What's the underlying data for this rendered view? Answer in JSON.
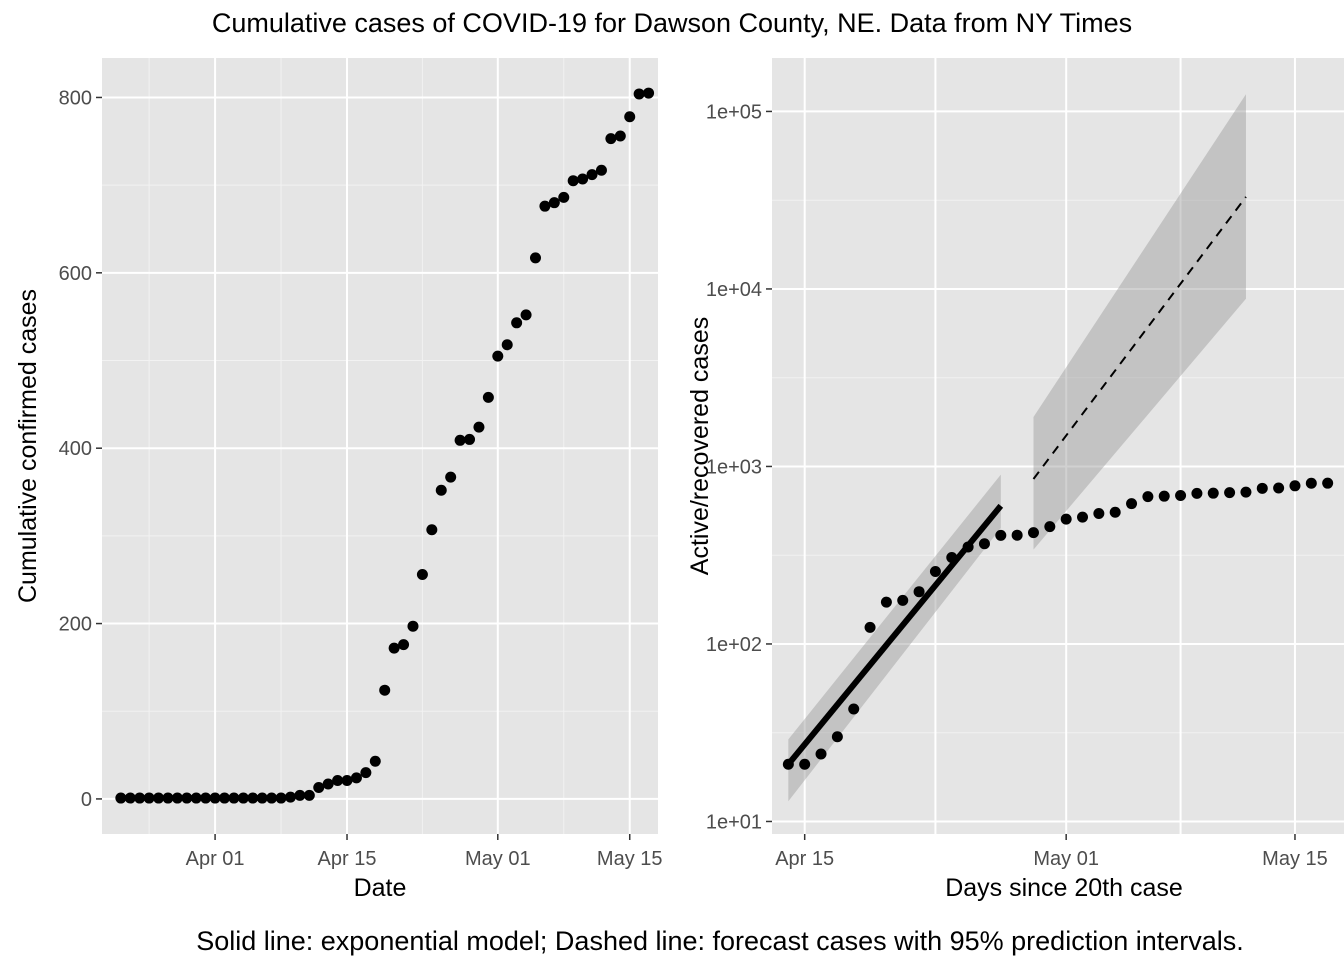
{
  "title": "Cumulative cases of COVID-19 for Dawson County, NE. Data from NY Times",
  "caption": "Solid line: exponential model; Dashed line: forecast cases with 95% prediction intervals.",
  "chart_data": [
    {
      "type": "scatter",
      "name": "left",
      "xlabel": "Date",
      "ylabel": "Cumulative confirmed cases",
      "x_ticks": [
        {
          "label": "Apr 01",
          "day": 1
        },
        {
          "label": "Apr 15",
          "day": 15
        },
        {
          "label": "May 01",
          "day": 31
        },
        {
          "label": "May 15",
          "day": 45
        }
      ],
      "y_ticks": [
        0,
        200,
        400,
        600,
        800
      ],
      "xlim_dates": [
        "2020-03-20",
        "2020-05-18"
      ],
      "ylim": [
        -40,
        845
      ],
      "grid": true,
      "points": [
        {
          "date": "2020-03-22",
          "y": 1
        },
        {
          "date": "2020-03-23",
          "y": 1
        },
        {
          "date": "2020-03-24",
          "y": 1
        },
        {
          "date": "2020-03-25",
          "y": 1
        },
        {
          "date": "2020-03-26",
          "y": 1
        },
        {
          "date": "2020-03-27",
          "y": 1
        },
        {
          "date": "2020-03-28",
          "y": 1
        },
        {
          "date": "2020-03-29",
          "y": 1
        },
        {
          "date": "2020-03-30",
          "y": 1
        },
        {
          "date": "2020-03-31",
          "y": 1
        },
        {
          "date": "2020-04-01",
          "y": 1
        },
        {
          "date": "2020-04-02",
          "y": 1
        },
        {
          "date": "2020-04-03",
          "y": 1
        },
        {
          "date": "2020-04-04",
          "y": 1
        },
        {
          "date": "2020-04-05",
          "y": 1
        },
        {
          "date": "2020-04-06",
          "y": 1
        },
        {
          "date": "2020-04-07",
          "y": 1
        },
        {
          "date": "2020-04-08",
          "y": 1
        },
        {
          "date": "2020-04-09",
          "y": 2
        },
        {
          "date": "2020-04-10",
          "y": 4
        },
        {
          "date": "2020-04-11",
          "y": 4
        },
        {
          "date": "2020-04-12",
          "y": 13
        },
        {
          "date": "2020-04-13",
          "y": 17
        },
        {
          "date": "2020-04-14",
          "y": 21
        },
        {
          "date": "2020-04-15",
          "y": 21
        },
        {
          "date": "2020-04-16",
          "y": 24
        },
        {
          "date": "2020-04-17",
          "y": 30
        },
        {
          "date": "2020-04-18",
          "y": 43
        },
        {
          "date": "2020-04-19",
          "y": 124
        },
        {
          "date": "2020-04-20",
          "y": 172
        },
        {
          "date": "2020-04-21",
          "y": 176
        },
        {
          "date": "2020-04-22",
          "y": 197
        },
        {
          "date": "2020-04-23",
          "y": 256
        },
        {
          "date": "2020-04-24",
          "y": 307
        },
        {
          "date": "2020-04-25",
          "y": 352
        },
        {
          "date": "2020-04-26",
          "y": 367
        },
        {
          "date": "2020-04-27",
          "y": 409
        },
        {
          "date": "2020-04-28",
          "y": 410
        },
        {
          "date": "2020-04-29",
          "y": 424
        },
        {
          "date": "2020-04-30",
          "y": 458
        },
        {
          "date": "2020-05-01",
          "y": 505
        },
        {
          "date": "2020-05-02",
          "y": 518
        },
        {
          "date": "2020-05-03",
          "y": 543
        },
        {
          "date": "2020-05-04",
          "y": 552
        },
        {
          "date": "2020-05-05",
          "y": 617
        },
        {
          "date": "2020-05-06",
          "y": 676
        },
        {
          "date": "2020-05-07",
          "y": 680
        },
        {
          "date": "2020-05-08",
          "y": 686
        },
        {
          "date": "2020-05-09",
          "y": 705
        },
        {
          "date": "2020-05-10",
          "y": 707
        },
        {
          "date": "2020-05-11",
          "y": 712
        },
        {
          "date": "2020-05-12",
          "y": 717
        },
        {
          "date": "2020-05-13",
          "y": 753
        },
        {
          "date": "2020-05-14",
          "y": 756
        },
        {
          "date": "2020-05-15",
          "y": 778
        },
        {
          "date": "2020-05-16",
          "y": 804
        },
        {
          "date": "2020-05-17",
          "y": 805
        }
      ]
    },
    {
      "type": "scatter",
      "name": "right",
      "xlabel": "Days since 20th case",
      "ylabel": "Active/recovered cases",
      "y_scale": "log10",
      "x_ticks": [
        {
          "label": "Apr 15",
          "day": 15
        },
        {
          "label": "May 01",
          "day": 31
        },
        {
          "label": "May 15",
          "day": 45
        }
      ],
      "y_ticks": [
        {
          "label": "1e+01",
          "value": 10
        },
        {
          "label": "1e+02",
          "value": 100
        },
        {
          "label": "1e+03",
          "value": 1000
        },
        {
          "label": "1e+04",
          "value": 10000
        },
        {
          "label": "1e+05",
          "value": 100000
        }
      ],
      "xlim_dates": [
        "2020-04-13",
        "2020-05-18"
      ],
      "ylim": [
        8.5,
        200000
      ],
      "grid": true,
      "points": [
        {
          "date": "2020-04-14",
          "y": 21
        },
        {
          "date": "2020-04-15",
          "y": 21
        },
        {
          "date": "2020-04-16",
          "y": 24
        },
        {
          "date": "2020-04-17",
          "y": 30
        },
        {
          "date": "2020-04-18",
          "y": 43
        },
        {
          "date": "2020-04-19",
          "y": 124
        },
        {
          "date": "2020-04-20",
          "y": 172
        },
        {
          "date": "2020-04-21",
          "y": 176
        },
        {
          "date": "2020-04-22",
          "y": 197
        },
        {
          "date": "2020-04-23",
          "y": 256
        },
        {
          "date": "2020-04-24",
          "y": 307
        },
        {
          "date": "2020-04-25",
          "y": 352
        },
        {
          "date": "2020-04-26",
          "y": 367
        },
        {
          "date": "2020-04-27",
          "y": 409
        },
        {
          "date": "2020-04-28",
          "y": 410
        },
        {
          "date": "2020-04-29",
          "y": 424
        },
        {
          "date": "2020-04-30",
          "y": 458
        },
        {
          "date": "2020-05-01",
          "y": 505
        },
        {
          "date": "2020-05-02",
          "y": 518
        },
        {
          "date": "2020-05-03",
          "y": 543
        },
        {
          "date": "2020-05-04",
          "y": 552
        },
        {
          "date": "2020-05-05",
          "y": 617
        },
        {
          "date": "2020-05-06",
          "y": 676
        },
        {
          "date": "2020-05-07",
          "y": 680
        },
        {
          "date": "2020-05-08",
          "y": 686
        },
        {
          "date": "2020-05-09",
          "y": 705
        },
        {
          "date": "2020-05-10",
          "y": 707
        },
        {
          "date": "2020-05-11",
          "y": 712
        },
        {
          "date": "2020-05-12",
          "y": 717
        },
        {
          "date": "2020-05-13",
          "y": 753
        },
        {
          "date": "2020-05-14",
          "y": 756
        },
        {
          "date": "2020-05-15",
          "y": 778
        },
        {
          "date": "2020-05-16",
          "y": 804
        },
        {
          "date": "2020-05-17",
          "y": 805
        }
      ],
      "model_fit": {
        "style": "solid",
        "x_start": "2020-04-14",
        "x_end": "2020-04-27",
        "y_start": 21,
        "y_end": 600,
        "band_lower_start": 13,
        "band_upper_start": 29,
        "band_lower_end": 450,
        "band_upper_end": 900
      },
      "forecast": {
        "style": "dashed",
        "x_start": "2020-04-29",
        "x_end": "2020-05-12",
        "y_start": 850,
        "y_end": 33000,
        "band_lower_start": 340,
        "band_upper_start": 1900,
        "band_lower_end": 8800,
        "band_upper_end": 125000
      },
      "band_color": "#999999"
    }
  ]
}
